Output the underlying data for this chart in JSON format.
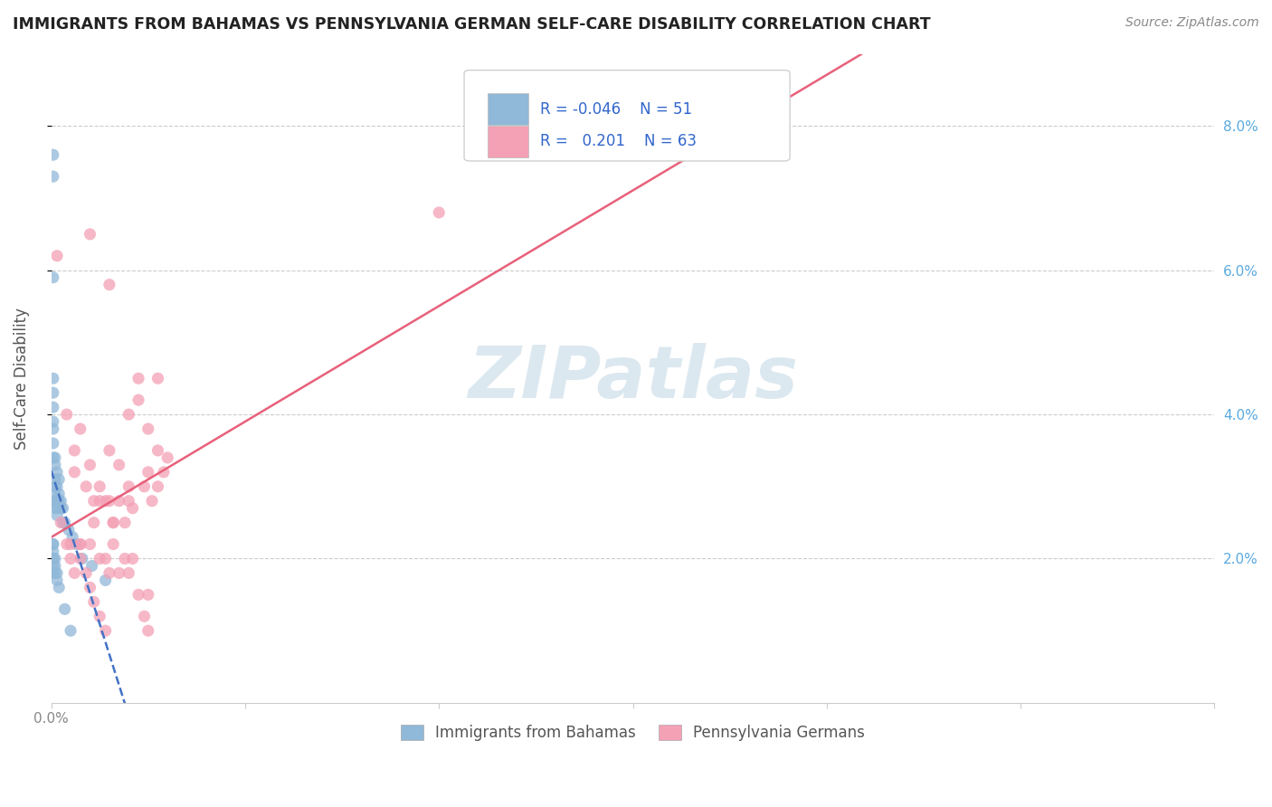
{
  "title": "IMMIGRANTS FROM BAHAMAS VS PENNSYLVANIA GERMAN SELF-CARE DISABILITY CORRELATION CHART",
  "source": "Source: ZipAtlas.com",
  "ylabel": "Self-Care Disability",
  "xlim": [
    0.0,
    0.6
  ],
  "ylim": [
    0.0,
    0.09
  ],
  "xtick_positions": [
    0.0,
    0.1,
    0.2,
    0.3,
    0.4,
    0.5,
    0.6
  ],
  "xtick_labels_show": {
    "0.0": "0.0%"
  },
  "yticks": [
    0.02,
    0.04,
    0.06,
    0.08
  ],
  "yticklabels_right": [
    "2.0%",
    "4.0%",
    "6.0%",
    "8.0%"
  ],
  "blue_R": -0.046,
  "blue_N": 51,
  "pink_R": 0.201,
  "pink_N": 63,
  "blue_label": "Immigrants from Bahamas",
  "pink_label": "Pennsylvania Germans",
  "background_color": "#ffffff",
  "blue_color": "#90b8d8",
  "pink_color": "#f4a0b5",
  "blue_line_color": "#4472c4",
  "pink_line_color": "#e8607a",
  "watermark_color": "#dce8f0",
  "legend_edge_color": "#d0d0d0",
  "grid_color": "#cccccc",
  "right_tick_color": "#5aaae0",
  "blue_x": [
    0.001,
    0.001,
    0.001,
    0.001,
    0.001,
    0.001,
    0.001,
    0.001,
    0.001,
    0.001,
    0.002,
    0.002,
    0.002,
    0.002,
    0.002,
    0.002,
    0.002,
    0.003,
    0.003,
    0.003,
    0.003,
    0.003,
    0.004,
    0.004,
    0.004,
    0.005,
    0.005,
    0.006,
    0.006,
    0.007,
    0.009,
    0.011,
    0.013,
    0.016,
    0.021,
    0.028,
    0.001,
    0.001,
    0.001,
    0.001,
    0.002,
    0.002,
    0.002,
    0.003,
    0.003,
    0.004,
    0.007,
    0.01,
    0.001,
    0.001,
    0.001
  ],
  "blue_y": [
    0.076,
    0.073,
    0.059,
    0.045,
    0.043,
    0.041,
    0.039,
    0.038,
    0.036,
    0.034,
    0.034,
    0.033,
    0.031,
    0.03,
    0.029,
    0.028,
    0.027,
    0.032,
    0.03,
    0.028,
    0.027,
    0.026,
    0.031,
    0.029,
    0.028,
    0.028,
    0.027,
    0.027,
    0.025,
    0.025,
    0.024,
    0.023,
    0.022,
    0.02,
    0.019,
    0.017,
    0.022,
    0.021,
    0.02,
    0.019,
    0.02,
    0.019,
    0.018,
    0.018,
    0.017,
    0.016,
    0.013,
    0.01,
    0.022,
    0.02,
    0.018
  ],
  "pink_x": [
    0.003,
    0.008,
    0.012,
    0.012,
    0.015,
    0.018,
    0.02,
    0.022,
    0.025,
    0.028,
    0.03,
    0.03,
    0.032,
    0.035,
    0.035,
    0.038,
    0.04,
    0.04,
    0.042,
    0.045,
    0.045,
    0.048,
    0.05,
    0.05,
    0.052,
    0.055,
    0.055,
    0.055,
    0.058,
    0.06,
    0.01,
    0.015,
    0.02,
    0.022,
    0.025,
    0.028,
    0.03,
    0.032,
    0.035,
    0.038,
    0.04,
    0.042,
    0.045,
    0.048,
    0.05,
    0.005,
    0.008,
    0.01,
    0.012,
    0.015,
    0.018,
    0.02,
    0.022,
    0.025,
    0.028,
    0.2,
    0.02,
    0.03,
    0.015,
    0.025,
    0.032,
    0.04,
    0.05
  ],
  "pink_y": [
    0.062,
    0.04,
    0.035,
    0.032,
    0.038,
    0.03,
    0.033,
    0.028,
    0.03,
    0.028,
    0.028,
    0.035,
    0.025,
    0.028,
    0.033,
    0.025,
    0.028,
    0.04,
    0.027,
    0.045,
    0.042,
    0.03,
    0.032,
    0.038,
    0.028,
    0.045,
    0.03,
    0.035,
    0.032,
    0.034,
    0.022,
    0.022,
    0.022,
    0.025,
    0.02,
    0.02,
    0.018,
    0.022,
    0.018,
    0.02,
    0.018,
    0.02,
    0.015,
    0.012,
    0.015,
    0.025,
    0.022,
    0.02,
    0.018,
    0.02,
    0.018,
    0.016,
    0.014,
    0.012,
    0.01,
    0.068,
    0.065,
    0.058,
    0.022,
    0.028,
    0.025,
    0.03,
    0.01
  ]
}
